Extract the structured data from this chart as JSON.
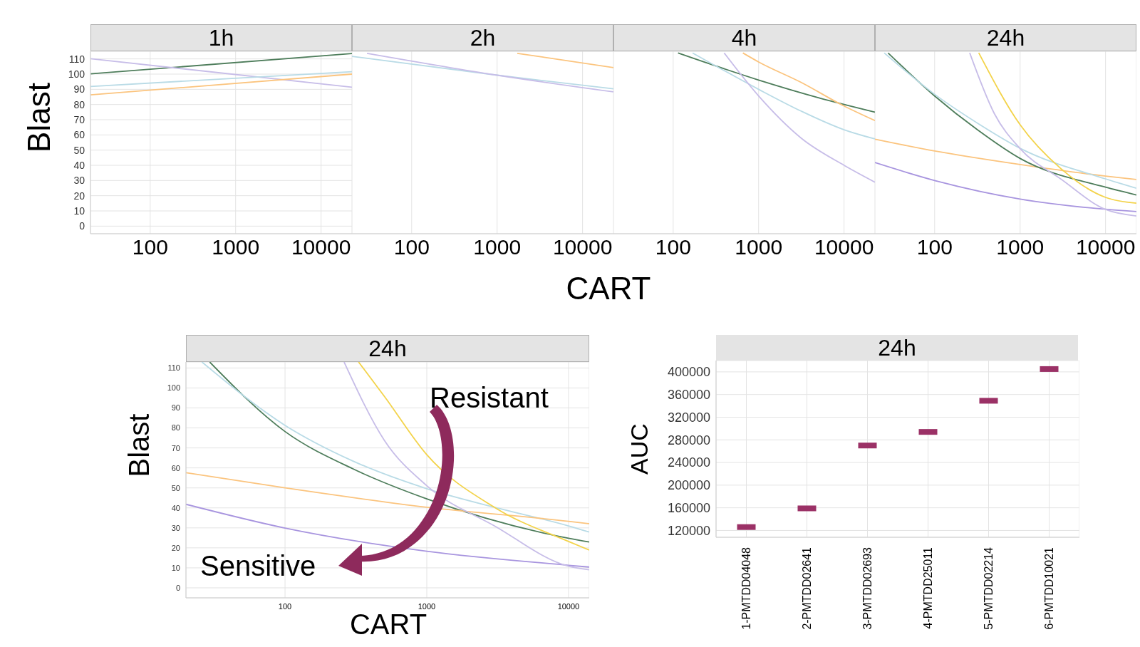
{
  "chart_data": [
    {
      "type": "line",
      "title": "1h",
      "ylabel": "Blast",
      "log": "x",
      "grid": true,
      "xlim": [
        20,
        23000
      ],
      "xticks": [
        100,
        1000,
        10000
      ],
      "ylim": [
        -5,
        115
      ],
      "yticks": [
        0,
        10,
        20,
        30,
        40,
        50,
        60,
        70,
        80,
        90,
        100,
        110
      ],
      "series": [
        {
          "color": "#4e7d5b",
          "x": [
            20,
            23000
          ],
          "values": [
            100.2,
            113.5
          ]
        },
        {
          "color": "#c7bde8",
          "x": [
            20,
            23000
          ],
          "values": [
            110.1,
            91.4
          ]
        },
        {
          "color": "#b9dbe6",
          "x": [
            20,
            23000
          ],
          "values": [
            91.9,
            101.6
          ]
        },
        {
          "color": "#fbc47e",
          "x": [
            20,
            23000
          ],
          "values": [
            86.3,
            100
          ]
        }
      ]
    },
    {
      "type": "line",
      "title": "2h",
      "xlabel": "CART",
      "log": "x",
      "grid": true,
      "tick_labels": "x",
      "xlim": [
        20,
        23000
      ],
      "xticks": [
        100,
        1000,
        10000
      ],
      "ylim": [
        -5,
        115
      ],
      "yticks": [
        0,
        10,
        20,
        30,
        40,
        50,
        60,
        70,
        80,
        90,
        100,
        110
      ],
      "series": [
        {
          "color": "#b9dbe6",
          "x": [
            20,
            1000,
            23000
          ],
          "values": [
            111.7,
            99.3,
            90.3
          ]
        },
        {
          "color": "#c7bde8",
          "x": [
            30,
            1000,
            23000
          ],
          "values": [
            113.7,
            99.3,
            88.3
          ]
        },
        {
          "color": "#fbc47e",
          "x": [
            1720,
            23000
          ],
          "values": [
            113.7,
            104.3
          ]
        }
      ]
    },
    {
      "type": "line",
      "title": "4h",
      "log": "x",
      "grid": true,
      "tick_labels": "x",
      "xlim": [
        20,
        23000
      ],
      "xticks": [
        100,
        1000,
        10000
      ],
      "ylim": [
        -5,
        115
      ],
      "yticks": [
        0,
        10,
        20,
        30,
        40,
        50,
        60,
        70,
        80,
        90,
        100,
        110
      ],
      "series": [
        {
          "color": "#4e7d5b",
          "x": [
            114,
            1000,
            5000,
            23000
          ],
          "values": [
            113.9,
            96.1,
            84.5,
            75
          ]
        },
        {
          "color": "#b9dbe6",
          "x": [
            169,
            1000,
            3160,
            10000,
            23000
          ],
          "values": [
            113.9,
            90,
            75.6,
            63.4,
            57.4
          ]
        },
        {
          "color": "#c7bde8",
          "x": [
            395,
            1000,
            3160,
            10000,
            23000
          ],
          "values": [
            113.9,
            85.6,
            57.8,
            40,
            28.9
          ]
        },
        {
          "color": "#fbc47e",
          "x": [
            655,
            1000,
            3160,
            10000,
            23000
          ],
          "values": [
            113.9,
            108,
            94.5,
            79,
            69.4
          ]
        }
      ]
    },
    {
      "type": "line",
      "title": "24h",
      "log": "x",
      "grid": true,
      "tick_labels": "x",
      "xlim": [
        20,
        23000
      ],
      "xticks": [
        100,
        1000,
        10000
      ],
      "ylim": [
        -5,
        115
      ],
      "yticks": [
        0,
        10,
        20,
        30,
        40,
        50,
        60,
        70,
        80,
        90,
        100,
        110
      ],
      "series": [
        {
          "color": "#fbc47e",
          "x": [
            20,
            100,
            1000,
            10000,
            23000
          ],
          "values": [
            57.2,
            49.4,
            40.5,
            32.9,
            30.7
          ]
        },
        {
          "color": "#a895df",
          "x": [
            20,
            100,
            1000,
            10000,
            23000
          ],
          "values": [
            41.8,
            30,
            17.8,
            11.1,
            9.6
          ]
        },
        {
          "color": "#4e7d5b",
          "x": [
            28.5,
            100,
            316,
            1000,
            10000,
            23000
          ],
          "values": [
            113.9,
            85.6,
            63.4,
            44.5,
            25.6,
            20.5
          ]
        },
        {
          "color": "#b9dbe6",
          "x": [
            25.7,
            100,
            316,
            1000,
            10000,
            23000
          ],
          "values": [
            113.9,
            86.7,
            67.8,
            51.2,
            31.1,
            24.9
          ]
        },
        {
          "color": "#c7bde8",
          "x": [
            257,
            500,
            1000,
            3000,
            10000,
            23000
          ],
          "values": [
            114,
            74,
            51,
            31,
            11,
            6.7
          ]
        },
        {
          "color": "#f3d34a",
          "x": [
            328,
            1000,
            3000,
            10000,
            23000
          ],
          "values": [
            114,
            66.7,
            37.8,
            18.9,
            15.1
          ]
        }
      ]
    },
    {
      "type": "line",
      "title": "24h",
      "ylabel": "Blast",
      "xlabel": "CART",
      "log": "x",
      "grid": true,
      "xlim": [
        20,
        14000
      ],
      "xticks": [
        100,
        1000,
        10000
      ],
      "ylim": [
        -5,
        113
      ],
      "yticks": [
        0,
        10,
        20,
        30,
        40,
        50,
        60,
        70,
        80,
        90,
        100,
        110
      ],
      "annotations": [
        "Resistant",
        "Sensitive"
      ],
      "series": [
        {
          "color": "#4e7d5b",
          "x": [
            29.4,
            100,
            300,
            1000,
            10000,
            14000
          ],
          "values": [
            113,
            78.2,
            59.6,
            44.5,
            24.8,
            22.9
          ]
        },
        {
          "color": "#b9dbe6",
          "x": [
            25.9,
            100,
            300,
            1000,
            3000,
            10000,
            14000
          ],
          "values": [
            113,
            81.3,
            63.5,
            49.6,
            40.3,
            31,
            27.9
          ]
        },
        {
          "color": "#fbc47e",
          "x": [
            20,
            100,
            1000,
            10000,
            14000
          ],
          "values": [
            57.6,
            50,
            40.3,
            33.3,
            32.1
          ]
        },
        {
          "color": "#a895df",
          "x": [
            20,
            100,
            1000,
            10000,
            14000
          ],
          "values": [
            41.8,
            29.9,
            18.3,
            11.3,
            10.4
          ]
        },
        {
          "color": "#c7bde8",
          "x": [
            261,
            500,
            1000,
            3000,
            10000,
            14000
          ],
          "values": [
            113,
            74,
            51.1,
            31,
            10.8,
            9
          ]
        },
        {
          "color": "#f3d34a",
          "x": [
            330,
            500,
            1000,
            3000,
            10000,
            14000
          ],
          "values": [
            113,
            96,
            66.6,
            40.3,
            23.2,
            18.9
          ]
        }
      ]
    },
    {
      "type": "scatter",
      "title": "24h",
      "ylabel": "AUC",
      "grid": true,
      "marker": "square",
      "color": "#9b3166",
      "categories": [
        "1-PMTDD04048",
        "2-PMTDD02641",
        "3-PMTDD02693",
        "4-PMTDD25011",
        "5-PMTDD02214",
        "6-PMTDD10021"
      ],
      "values": [
        126000,
        159000,
        270000,
        294000,
        349000,
        405000
      ],
      "ylim": [
        108000,
        420000
      ],
      "yticks": [
        120000,
        160000,
        200000,
        240000,
        280000,
        320000,
        360000,
        400000
      ]
    }
  ]
}
